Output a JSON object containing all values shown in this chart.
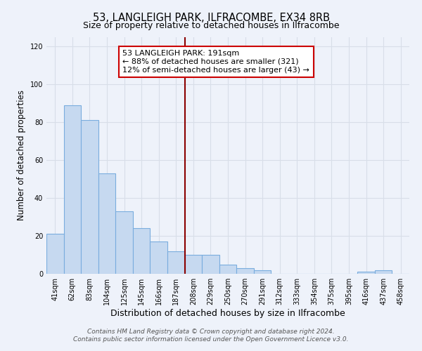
{
  "title": "53, LANGLEIGH PARK, ILFRACOMBE, EX34 8RB",
  "subtitle": "Size of property relative to detached houses in Ilfracombe",
  "xlabel": "Distribution of detached houses by size in Ilfracombe",
  "ylabel": "Number of detached properties",
  "bar_labels": [
    "41sqm",
    "62sqm",
    "83sqm",
    "104sqm",
    "125sqm",
    "145sqm",
    "166sqm",
    "187sqm",
    "208sqm",
    "229sqm",
    "250sqm",
    "270sqm",
    "291sqm",
    "312sqm",
    "333sqm",
    "354sqm",
    "375sqm",
    "395sqm",
    "416sqm",
    "437sqm",
    "458sqm"
  ],
  "bar_values": [
    21,
    89,
    81,
    53,
    33,
    24,
    17,
    12,
    10,
    10,
    5,
    3,
    2,
    0,
    0,
    0,
    0,
    0,
    1,
    2,
    0
  ],
  "bar_color": "#c6d9f0",
  "bar_edge_color": "#7aadde",
  "reference_bar_index": 7,
  "reference_line_color": "#8b0000",
  "annotation_line1": "53 LANGLEIGH PARK: 191sqm",
  "annotation_line2": "← 88% of detached houses are smaller (321)",
  "annotation_line3": "12% of semi-detached houses are larger (43) →",
  "annotation_box_color": "#ffffff",
  "annotation_box_edge_color": "#cc0000",
  "ylim": [
    0,
    125
  ],
  "yticks": [
    0,
    20,
    40,
    60,
    80,
    100,
    120
  ],
  "footer_line1": "Contains HM Land Registry data © Crown copyright and database right 2024.",
  "footer_line2": "Contains public sector information licensed under the Open Government Licence v3.0.",
  "background_color": "#eef2fa",
  "grid_color": "#d8dee8",
  "title_fontsize": 10.5,
  "subtitle_fontsize": 9,
  "xlabel_fontsize": 9,
  "ylabel_fontsize": 8.5,
  "tick_fontsize": 7,
  "annotation_fontsize": 8,
  "footer_fontsize": 6.5
}
